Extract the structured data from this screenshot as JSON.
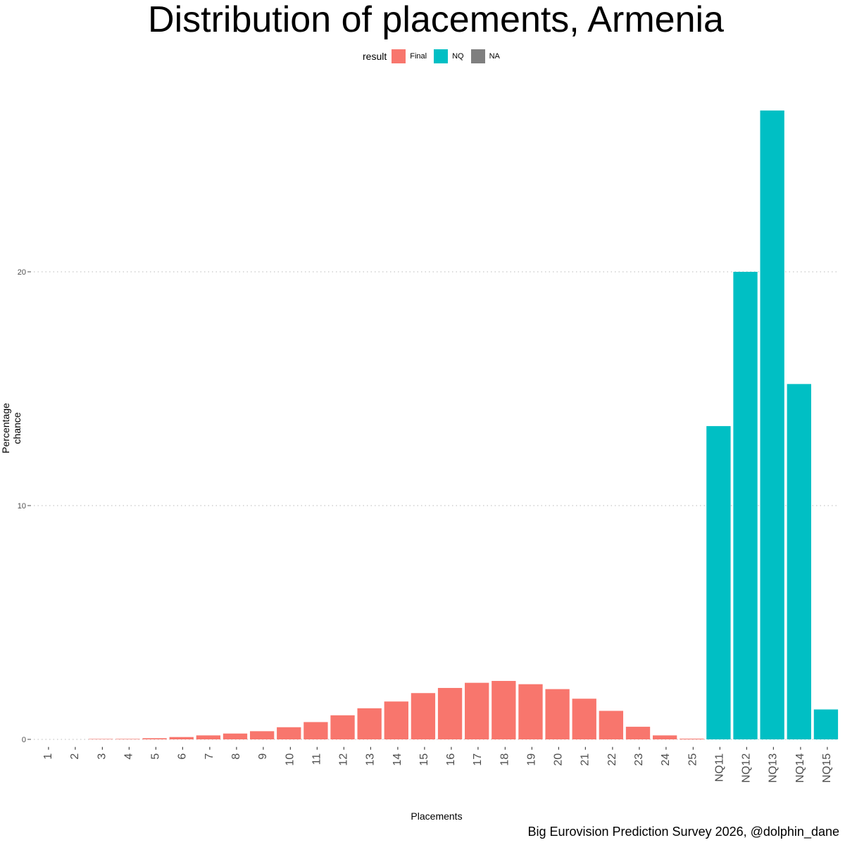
{
  "chart_data": {
    "type": "bar",
    "title": "Distribution of placements, Armenia",
    "xlabel": "Placements",
    "ylabel": "Percentage chance",
    "caption": "Big Eurovision Prediction Survey 2026, @dolphin_dane",
    "ylim": [
      0,
      27.5
    ],
    "yticks": [
      "0",
      "10",
      "20"
    ],
    "grid": "horizontal dotted",
    "legend": {
      "title": "result",
      "position": "top",
      "entries": [
        {
          "label": "Final",
          "color": "#F8766D"
        },
        {
          "label": "NQ",
          "color": "#00BFC4"
        },
        {
          "label": "NA",
          "color": "#7F7F7F"
        }
      ]
    },
    "categories": [
      "1",
      "2",
      "3",
      "4",
      "5",
      "6",
      "7",
      "8",
      "9",
      "10",
      "11",
      "12",
      "13",
      "14",
      "15",
      "16",
      "17",
      "18",
      "19",
      "20",
      "21",
      "22",
      "23",
      "24",
      "25",
      "NQ11",
      "NQ12",
      "NQ13",
      "NQ14",
      "NQ15"
    ],
    "values": [
      0,
      0,
      0.01,
      0.02,
      0.05,
      0.1,
      0.17,
      0.25,
      0.35,
      0.52,
      0.74,
      1.03,
      1.33,
      1.62,
      1.98,
      2.2,
      2.42,
      2.5,
      2.36,
      2.15,
      1.74,
      1.22,
      0.54,
      0.17,
      0.03,
      13.4,
      20.0,
      26.9,
      15.2,
      1.28
    ],
    "groups": [
      "Final",
      "Final",
      "Final",
      "Final",
      "Final",
      "Final",
      "Final",
      "Final",
      "Final",
      "Final",
      "Final",
      "Final",
      "Final",
      "Final",
      "Final",
      "Final",
      "Final",
      "Final",
      "Final",
      "Final",
      "Final",
      "Final",
      "Final",
      "Final",
      "Final",
      "NQ",
      "NQ",
      "NQ",
      "NQ",
      "NQ"
    ]
  }
}
